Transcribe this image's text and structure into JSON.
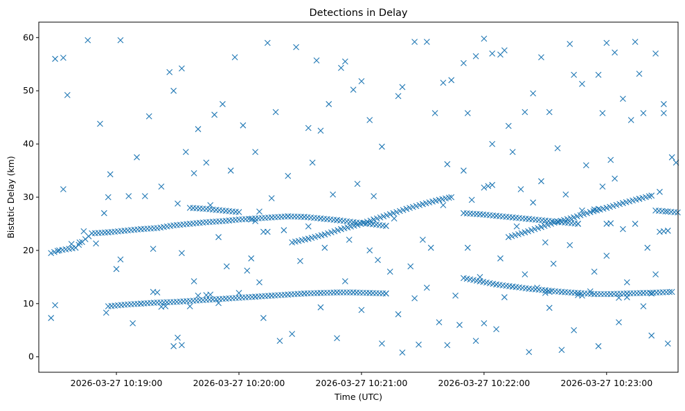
{
  "chart_data": {
    "type": "scatter",
    "title": "Detections in Delay",
    "xlabel": "Time (UTC)",
    "ylabel": "Bistatic Delay (km)",
    "xlim": [
      -38,
      275
    ],
    "ylim": [
      -2.9,
      62.9
    ],
    "xtick_values": [
      0,
      60,
      120,
      180,
      240
    ],
    "xtick_labels": [
      "2026-03-27 10:19:00",
      "2026-03-27 10:20:00",
      "2026-03-27 10:21:00",
      "2026-03-27 10:22:00",
      "2026-03-27 10:23:00"
    ],
    "yticks": [
      0,
      10,
      20,
      30,
      40,
      50,
      60
    ],
    "marker": "x",
    "marker_color": "#1f77b4",
    "x_units": "seconds after 2026-03-27 10:19:00",
    "tracks": [
      {
        "name": "track-1",
        "points": [
          [
            -32,
            19.5
          ],
          [
            -28,
            20.0
          ],
          [
            -20,
            20.5
          ],
          [
            -12,
            23.2
          ],
          [
            -4,
            23.4
          ],
          [
            4,
            23.7
          ],
          [
            12,
            24.0
          ],
          [
            20,
            24.2
          ],
          [
            28,
            24.7
          ],
          [
            36,
            25.0
          ],
          [
            44,
            25.3
          ],
          [
            52,
            25.5
          ],
          [
            60,
            25.8
          ],
          [
            68,
            26.0
          ],
          [
            76,
            26.2
          ],
          [
            84,
            26.4
          ],
          [
            92,
            26.3
          ],
          [
            100,
            26.0
          ],
          [
            108,
            25.7
          ],
          [
            116,
            25.3
          ],
          [
            124,
            25.0
          ],
          [
            132,
            24.6
          ]
        ]
      },
      {
        "name": "track-2",
        "points": [
          [
            86,
            21.5
          ],
          [
            94,
            22.2
          ],
          [
            102,
            23.0
          ],
          [
            110,
            24.0
          ],
          [
            118,
            24.8
          ],
          [
            126,
            25.8
          ],
          [
            134,
            26.8
          ],
          [
            142,
            27.8
          ],
          [
            150,
            28.7
          ],
          [
            158,
            29.5
          ],
          [
            164,
            30.0
          ]
        ]
      },
      {
        "name": "track-3",
        "points": [
          [
            -4,
            9.5
          ],
          [
            4,
            9.8
          ],
          [
            12,
            10.0
          ],
          [
            20,
            10.2
          ],
          [
            28,
            10.3
          ],
          [
            36,
            10.5
          ],
          [
            44,
            10.7
          ],
          [
            52,
            10.9
          ],
          [
            60,
            11.1
          ],
          [
            68,
            11.3
          ],
          [
            76,
            11.5
          ],
          [
            84,
            11.7
          ],
          [
            92,
            11.9
          ],
          [
            100,
            12.0
          ],
          [
            108,
            12.1
          ],
          [
            116,
            12.1
          ],
          [
            124,
            12.0
          ],
          [
            132,
            11.9
          ]
        ]
      },
      {
        "name": "track-4",
        "points": [
          [
            170,
            27.0
          ],
          [
            178,
            26.8
          ],
          [
            186,
            26.5
          ],
          [
            194,
            26.2
          ],
          [
            202,
            25.9
          ],
          [
            210,
            25.6
          ],
          [
            218,
            25.3
          ],
          [
            226,
            25.0
          ]
        ]
      },
      {
        "name": "track-5",
        "points": [
          [
            192,
            22.5
          ],
          [
            200,
            23.4
          ],
          [
            208,
            24.4
          ],
          [
            216,
            25.4
          ],
          [
            224,
            26.2
          ],
          [
            232,
            27.2
          ],
          [
            240,
            28.0
          ],
          [
            248,
            28.9
          ],
          [
            256,
            29.7
          ],
          [
            262,
            30.3
          ]
        ]
      },
      {
        "name": "track-6",
        "points": [
          [
            170,
            14.8
          ],
          [
            178,
            14.2
          ],
          [
            186,
            13.6
          ],
          [
            194,
            13.2
          ],
          [
            202,
            12.8
          ],
          [
            210,
            12.5
          ],
          [
            218,
            12.2
          ],
          [
            226,
            12.0
          ],
          [
            234,
            11.8
          ],
          [
            242,
            11.8
          ],
          [
            250,
            11.9
          ],
          [
            258,
            12.0
          ],
          [
            266,
            12.1
          ],
          [
            272,
            12.2
          ]
        ]
      },
      {
        "name": "track-7",
        "points": [
          [
            264,
            27.5
          ],
          [
            270,
            27.3
          ],
          [
            276,
            27.1
          ]
        ]
      },
      {
        "name": "track-8",
        "points": [
          [
            36,
            28.0
          ],
          [
            44,
            27.8
          ],
          [
            52,
            27.5
          ],
          [
            60,
            27.2
          ]
        ]
      }
    ],
    "scatter_points": [
      [
        -30,
        56.0
      ],
      [
        -26,
        56.2
      ],
      [
        -24,
        49.2
      ],
      [
        -14,
        59.5
      ],
      [
        -8,
        43.8
      ],
      [
        2,
        59.5
      ],
      [
        -26,
        31.5
      ],
      [
        -32,
        7.3
      ],
      [
        -30,
        9.7
      ],
      [
        -5,
        8.3
      ],
      [
        -3,
        34.3
      ],
      [
        6,
        30.2
      ],
      [
        8,
        6.3
      ],
      [
        16,
        45.2
      ],
      [
        26,
        53.5
      ],
      [
        28,
        50.0
      ],
      [
        32,
        54.2
      ],
      [
        34,
        38.5
      ],
      [
        38,
        34.5
      ],
      [
        40,
        42.8
      ],
      [
        48,
        45.5
      ],
      [
        52,
        47.5
      ],
      [
        58,
        56.3
      ],
      [
        62,
        43.5
      ],
      [
        68,
        38.5
      ],
      [
        74,
        59.0
      ],
      [
        78,
        46.0
      ],
      [
        84,
        34.0
      ],
      [
        88,
        58.2
      ],
      [
        94,
        43.0
      ],
      [
        98,
        55.7
      ],
      [
        100,
        42.5
      ],
      [
        104,
        47.5
      ],
      [
        110,
        54.3
      ],
      [
        112,
        55.5
      ],
      [
        116,
        50.2
      ],
      [
        120,
        51.8
      ],
      [
        124,
        44.5
      ],
      [
        130,
        39.5
      ],
      [
        138,
        49.0
      ],
      [
        140,
        50.7
      ],
      [
        146,
        59.2
      ],
      [
        152,
        59.2
      ],
      [
        156,
        45.8
      ],
      [
        160,
        51.5
      ],
      [
        162,
        36.2
      ],
      [
        164,
        52.0
      ],
      [
        170,
        55.2
      ],
      [
        172,
        45.8
      ],
      [
        176,
        56.5
      ],
      [
        180,
        59.8
      ],
      [
        184,
        57.0
      ],
      [
        188,
        56.8
      ],
      [
        190,
        57.6
      ],
      [
        192,
        43.4
      ],
      [
        200,
        46.0
      ],
      [
        204,
        49.5
      ],
      [
        208,
        56.3
      ],
      [
        212,
        46.0
      ],
      [
        216,
        39.2
      ],
      [
        222,
        58.8
      ],
      [
        224,
        53.0
      ],
      [
        228,
        51.3
      ],
      [
        236,
        53.0
      ],
      [
        238,
        45.8
      ],
      [
        240,
        59.0
      ],
      [
        244,
        57.2
      ],
      [
        248,
        48.5
      ],
      [
        254,
        59.2
      ],
      [
        256,
        53.2
      ],
      [
        258,
        45.8
      ],
      [
        264,
        57.0
      ],
      [
        268,
        45.8
      ],
      [
        -22,
        21.2
      ],
      [
        -18,
        21.5
      ],
      [
        -16,
        23.6
      ],
      [
        -10,
        21.3
      ],
      [
        -6,
        27.0
      ],
      [
        -4,
        30.0
      ],
      [
        0,
        16.5
      ],
      [
        2,
        18.3
      ],
      [
        10,
        37.5
      ],
      [
        14,
        30.2
      ],
      [
        18,
        20.3
      ],
      [
        22,
        32.0
      ],
      [
        30,
        28.8
      ],
      [
        32,
        19.5
      ],
      [
        36,
        9.5
      ],
      [
        38,
        14.2
      ],
      [
        44,
        36.5
      ],
      [
        46,
        28.5
      ],
      [
        50,
        22.5
      ],
      [
        54,
        17.0
      ],
      [
        56,
        35.0
      ],
      [
        60,
        12.0
      ],
      [
        64,
        16.2
      ],
      [
        66,
        18.5
      ],
      [
        70,
        14.0
      ],
      [
        72,
        7.3
      ],
      [
        76,
        29.8
      ],
      [
        80,
        3.0
      ],
      [
        82,
        23.8
      ],
      [
        86,
        4.3
      ],
      [
        90,
        18.0
      ],
      [
        94,
        24.5
      ],
      [
        96,
        36.5
      ],
      [
        100,
        9.3
      ],
      [
        102,
        20.5
      ],
      [
        106,
        30.5
      ],
      [
        108,
        3.5
      ],
      [
        112,
        14.2
      ],
      [
        114,
        22.0
      ],
      [
        118,
        32.5
      ],
      [
        120,
        8.8
      ],
      [
        124,
        20.0
      ],
      [
        126,
        30.2
      ],
      [
        128,
        18.2
      ],
      [
        130,
        2.5
      ],
      [
        134,
        16.0
      ],
      [
        136,
        26.0
      ],
      [
        138,
        8.0
      ],
      [
        140,
        0.8
      ],
      [
        144,
        17.0
      ],
      [
        146,
        11.0
      ],
      [
        148,
        2.3
      ],
      [
        150,
        22.0
      ],
      [
        152,
        13.0
      ],
      [
        154,
        20.5
      ],
      [
        158,
        6.5
      ],
      [
        160,
        28.5
      ],
      [
        162,
        2.2
      ],
      [
        166,
        11.5
      ],
      [
        168,
        6.0
      ],
      [
        170,
        35.0
      ],
      [
        172,
        20.5
      ],
      [
        174,
        29.5
      ],
      [
        176,
        3.0
      ],
      [
        178,
        15.0
      ],
      [
        180,
        6.3
      ],
      [
        184,
        40.0
      ],
      [
        186,
        5.2
      ],
      [
        188,
        18.5
      ],
      [
        190,
        11.2
      ],
      [
        194,
        38.5
      ],
      [
        196,
        24.5
      ],
      [
        198,
        31.5
      ],
      [
        200,
        15.5
      ],
      [
        202,
        0.9
      ],
      [
        204,
        29.0
      ],
      [
        206,
        13.0
      ],
      [
        208,
        33.0
      ],
      [
        210,
        21.5
      ],
      [
        212,
        9.2
      ],
      [
        214,
        17.5
      ],
      [
        218,
        1.3
      ],
      [
        220,
        30.5
      ],
      [
        222,
        21.0
      ],
      [
        224,
        5.0
      ],
      [
        228,
        27.5
      ],
      [
        230,
        36.0
      ],
      [
        232,
        12.3
      ],
      [
        234,
        16.0
      ],
      [
        236,
        2.0
      ],
      [
        238,
        32.0
      ],
      [
        240,
        19.0
      ],
      [
        242,
        37.0
      ],
      [
        244,
        33.5
      ],
      [
        246,
        6.5
      ],
      [
        248,
        24.0
      ],
      [
        250,
        14.0
      ],
      [
        252,
        44.5
      ],
      [
        254,
        25.0
      ],
      [
        258,
        9.5
      ],
      [
        260,
        20.5
      ],
      [
        262,
        4.0
      ],
      [
        264,
        15.5
      ],
      [
        266,
        31.0
      ],
      [
        268,
        47.5
      ],
      [
        270,
        2.5
      ],
      [
        272,
        37.5
      ],
      [
        274,
        36.5
      ],
      [
        266,
        23.5
      ],
      [
        268,
        23.6
      ],
      [
        270,
        23.7
      ],
      [
        18,
        12.2
      ],
      [
        20,
        12.1
      ],
      [
        22,
        9.4
      ],
      [
        24,
        9.5
      ],
      [
        28,
        2.0
      ],
      [
        30,
        3.6
      ],
      [
        32,
        2.2
      ],
      [
        40,
        11.5
      ],
      [
        44,
        11.6
      ],
      [
        46,
        11.7
      ],
      [
        50,
        10.1
      ],
      [
        66,
        25.8
      ],
      [
        68,
        25.5
      ],
      [
        70,
        27.3
      ],
      [
        72,
        23.5
      ],
      [
        74,
        23.5
      ],
      [
        180,
        31.8
      ],
      [
        182,
        32.1
      ],
      [
        184,
        32.3
      ],
      [
        234,
        27.7
      ],
      [
        236,
        27.8
      ],
      [
        240,
        25.0
      ],
      [
        242,
        25.1
      ],
      [
        258,
        12.0
      ],
      [
        262,
        11.9
      ],
      [
        250,
        11.2
      ],
      [
        246,
        11.1
      ],
      [
        228,
        11.5
      ],
      [
        226,
        11.6
      ],
      [
        210,
        12.0
      ],
      [
        212,
        12.2
      ]
    ]
  }
}
